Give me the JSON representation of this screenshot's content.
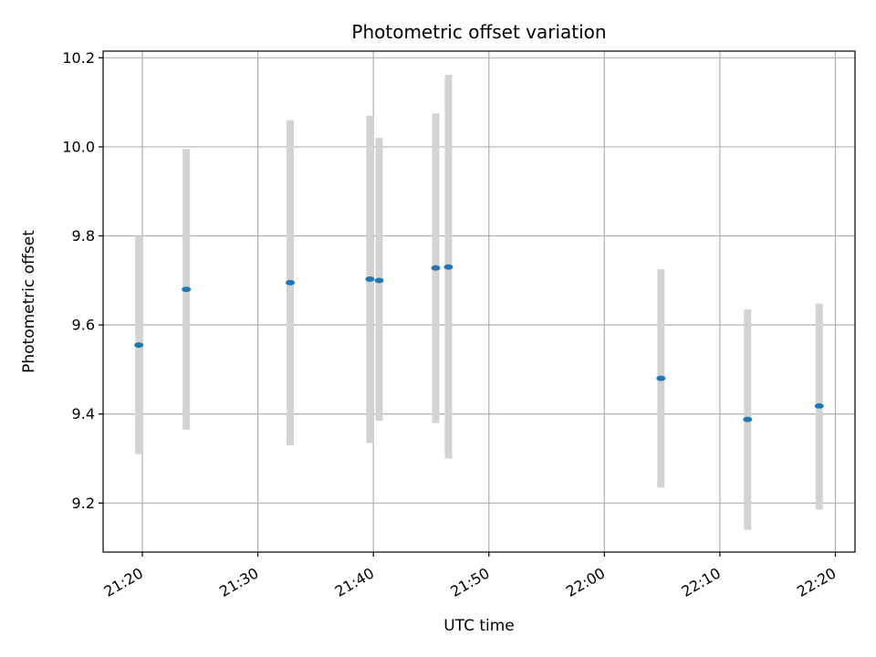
{
  "chart_data": {
    "type": "scatter",
    "title": "Photometric offset variation",
    "xlabel": "UTC time",
    "ylabel": "Photometric offset",
    "x_axis": "time",
    "xlim": [
      "21:16.6",
      "22:21.7"
    ],
    "ylim": [
      9.09,
      10.215
    ],
    "x_ticks": [
      "21:20",
      "21:30",
      "21:40",
      "21:50",
      "22:00",
      "22:10",
      "22:20"
    ],
    "y_ticks": [
      "9.2",
      "9.4",
      "9.6",
      "9.8",
      "10.0",
      "10.2"
    ],
    "grid": true,
    "colors": {
      "point": "#1f77b4",
      "errorbar": "#d3d3d3",
      "grid": "#b0b0b0"
    },
    "points": [
      {
        "x": "21:19.7",
        "y": 9.555,
        "err_low": 9.31,
        "err_high": 9.8
      },
      {
        "x": "21:23.8",
        "y": 9.68,
        "err_low": 9.365,
        "err_high": 9.995
      },
      {
        "x": "21:32.8",
        "y": 9.695,
        "err_low": 9.33,
        "err_high": 10.06
      },
      {
        "x": "21:39.7",
        "y": 9.703,
        "err_low": 9.335,
        "err_high": 10.07
      },
      {
        "x": "21:40.5",
        "y": 9.7,
        "err_low": 9.385,
        "err_high": 10.02
      },
      {
        "x": "21:45.4",
        "y": 9.728,
        "err_low": 9.38,
        "err_high": 10.075
      },
      {
        "x": "21:46.5",
        "y": 9.73,
        "err_low": 9.3,
        "err_high": 10.162
      },
      {
        "x": "22:04.9",
        "y": 9.48,
        "err_low": 9.235,
        "err_high": 9.725
      },
      {
        "x": "22:12.4",
        "y": 9.388,
        "err_low": 9.14,
        "err_high": 9.635
      },
      {
        "x": "22:18.6",
        "y": 9.418,
        "err_low": 9.185,
        "err_high": 9.648
      }
    ]
  }
}
